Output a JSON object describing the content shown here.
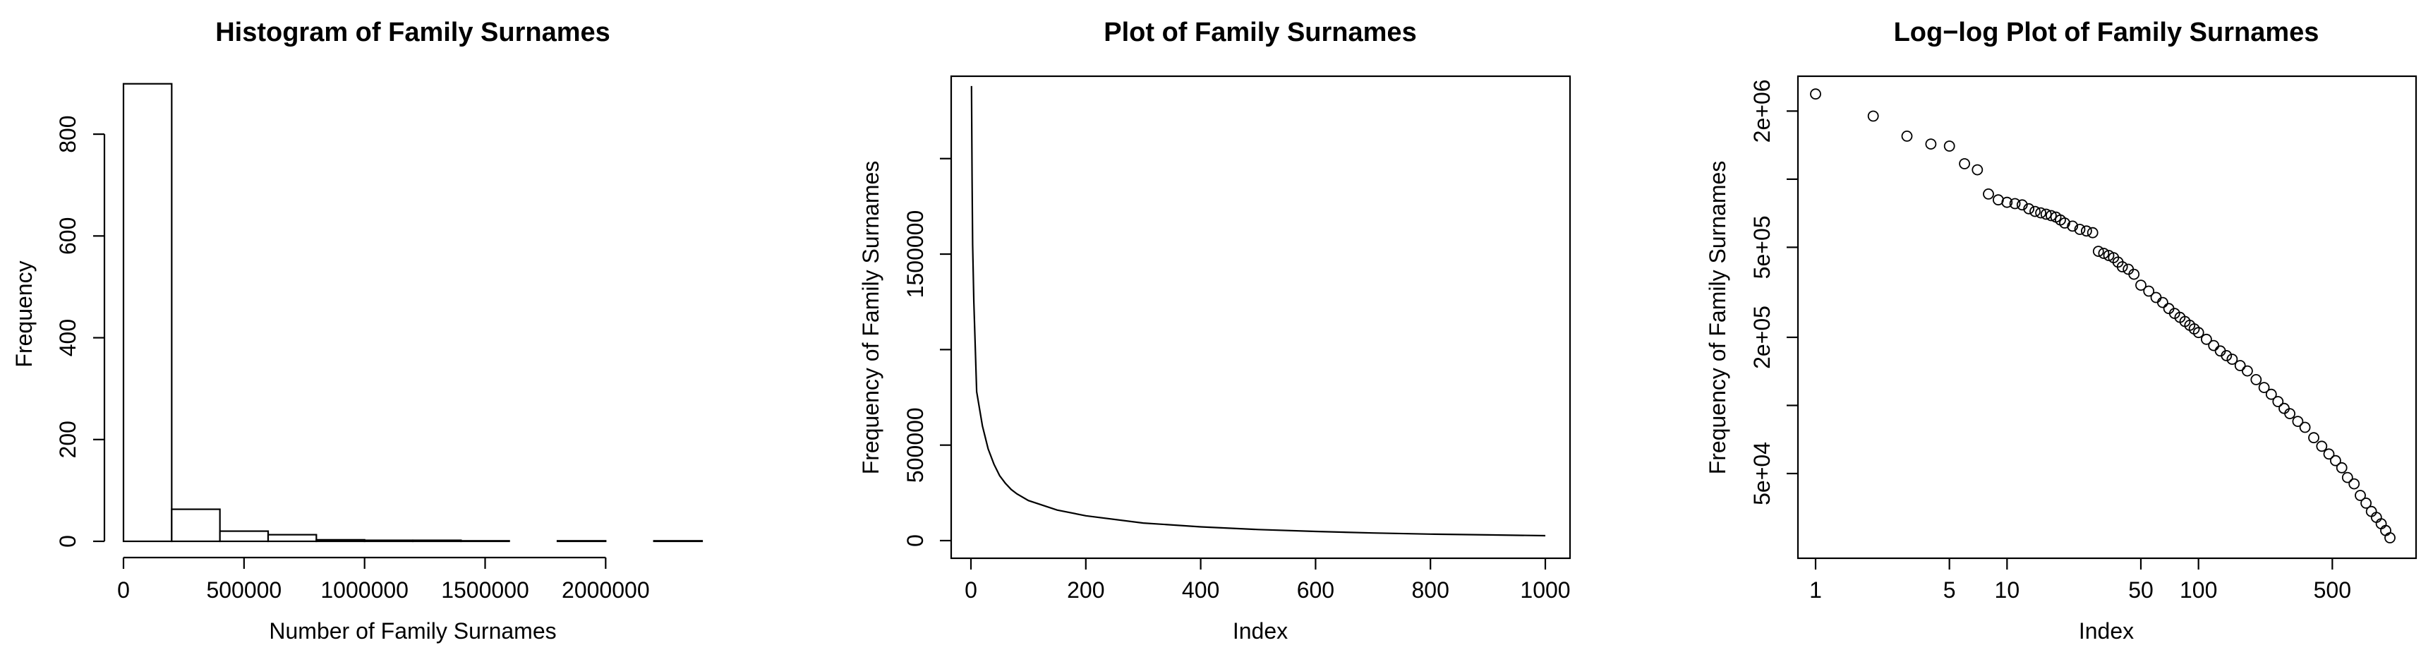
{
  "chart_data": [
    {
      "type": "bar",
      "title": "Histogram of Family Surnames",
      "xlabel": "Number of Family Surnames",
      "ylabel": "Frequency",
      "xlim": [
        0,
        2400000
      ],
      "ylim": [
        0,
        900
      ],
      "x_ticks": [
        {
          "value": 0,
          "label": "0"
        },
        {
          "value": 500000,
          "label": "500000"
        },
        {
          "value": 1000000,
          "label": "1000000"
        },
        {
          "value": 1500000,
          "label": "1500000"
        },
        {
          "value": 2000000,
          "label": "2000000"
        }
      ],
      "y_ticks": [
        {
          "value": 0,
          "label": "0"
        },
        {
          "value": 200,
          "label": "200"
        },
        {
          "value": 400,
          "label": "400"
        },
        {
          "value": 600,
          "label": "600"
        },
        {
          "value": 800,
          "label": "800"
        }
      ],
      "bin_edges": [
        0,
        200000,
        400000,
        600000,
        800000,
        1000000,
        1200000,
        1400000,
        1600000,
        1800000,
        2000000,
        2200000,
        2400000
      ],
      "counts": [
        899,
        63,
        20,
        13,
        3,
        2,
        2,
        1,
        0,
        1,
        0,
        1
      ],
      "grid": false
    },
    {
      "type": "line",
      "title": "Plot of Family Surnames",
      "xlabel": "Index",
      "ylabel": "Frequency of Family Surnames",
      "xlim": [
        0,
        1000
      ],
      "ylim": [
        0,
        2350000
      ],
      "x_ticks": [
        {
          "value": 0,
          "label": "0"
        },
        {
          "value": 200,
          "label": "200"
        },
        {
          "value": 400,
          "label": "400"
        },
        {
          "value": 600,
          "label": "600"
        },
        {
          "value": 800,
          "label": "800"
        },
        {
          "value": 1000,
          "label": "1000"
        }
      ],
      "y_ticks": [
        {
          "value": 0,
          "label": "0"
        },
        {
          "value": 500000,
          "label": "500000"
        },
        {
          "value": 1000000,
          "label": ""
        },
        {
          "value": 1500000,
          "label": "1500000"
        },
        {
          "value": 2000000,
          "label": ""
        }
      ],
      "x": [
        1,
        2,
        3,
        5,
        10,
        15,
        20,
        30,
        40,
        50,
        60,
        70,
        80,
        100,
        150,
        200,
        300,
        400,
        500,
        600,
        700,
        800,
        900,
        1000
      ],
      "y": [
        2380000,
        1900000,
        1550000,
        1250000,
        780000,
        690000,
        600000,
        480000,
        400000,
        340000,
        300000,
        268000,
        245000,
        210000,
        160000,
        130000,
        92000,
        72000,
        58000,
        48000,
        40000,
        34000,
        30000,
        26000
      ],
      "grid": false
    },
    {
      "type": "scatter",
      "title": "Log−log Plot of Family Surnames",
      "xlabel": "Index",
      "ylabel": "Frequency of Family Surnames",
      "log_x": true,
      "log_y": true,
      "xlim": [
        1,
        1000
      ],
      "ylim": [
        26000,
        2400000
      ],
      "x_ticks": [
        {
          "value": 1,
          "label": "1"
        },
        {
          "value": 5,
          "label": "5"
        },
        {
          "value": 10,
          "label": "10"
        },
        {
          "value": 50,
          "label": "50"
        },
        {
          "value": 100,
          "label": "100"
        },
        {
          "value": 500,
          "label": "500"
        }
      ],
      "y_ticks": [
        {
          "value": 50000,
          "label": "5e+04"
        },
        {
          "value": 100000,
          "label": ""
        },
        {
          "value": 200000,
          "label": "2e+05"
        },
        {
          "value": 500000,
          "label": "5e+05"
        },
        {
          "value": 1000000,
          "label": ""
        },
        {
          "value": 2000000,
          "label": "2e+06"
        }
      ],
      "points": [
        [
          1,
          2380000
        ],
        [
          2,
          1900000
        ],
        [
          3,
          1550000
        ],
        [
          4,
          1430000
        ],
        [
          5,
          1400000
        ],
        [
          6,
          1170000
        ],
        [
          7,
          1100000
        ],
        [
          8,
          860000
        ],
        [
          9,
          810000
        ],
        [
          10,
          790000
        ],
        [
          11,
          780000
        ],
        [
          12,
          770000
        ],
        [
          13,
          740000
        ],
        [
          14,
          720000
        ],
        [
          15,
          710000
        ],
        [
          16,
          700000
        ],
        [
          17,
          690000
        ],
        [
          18,
          680000
        ],
        [
          19,
          660000
        ],
        [
          20,
          640000
        ],
        [
          22,
          620000
        ],
        [
          24,
          600000
        ],
        [
          26,
          590000
        ],
        [
          28,
          580000
        ],
        [
          30,
          480000
        ],
        [
          32,
          470000
        ],
        [
          34,
          460000
        ],
        [
          36,
          450000
        ],
        [
          38,
          430000
        ],
        [
          40,
          410000
        ],
        [
          43,
          400000
        ],
        [
          46,
          380000
        ],
        [
          50,
          340000
        ],
        [
          55,
          320000
        ],
        [
          60,
          300000
        ],
        [
          65,
          285000
        ],
        [
          70,
          268000
        ],
        [
          75,
          255000
        ],
        [
          80,
          245000
        ],
        [
          85,
          235000
        ],
        [
          90,
          226000
        ],
        [
          95,
          218000
        ],
        [
          100,
          210000
        ],
        [
          110,
          196000
        ],
        [
          120,
          184000
        ],
        [
          130,
          174000
        ],
        [
          140,
          166000
        ],
        [
          150,
          160000
        ],
        [
          165,
          150000
        ],
        [
          180,
          142000
        ],
        [
          200,
          130000
        ],
        [
          220,
          120000
        ],
        [
          240,
          112000
        ],
        [
          260,
          104000
        ],
        [
          280,
          97000
        ],
        [
          300,
          92000
        ],
        [
          330,
          85000
        ],
        [
          360,
          80000
        ],
        [
          400,
          72000
        ],
        [
          440,
          66000
        ],
        [
          480,
          61000
        ],
        [
          520,
          57000
        ],
        [
          560,
          53000
        ],
        [
          600,
          48000
        ],
        [
          650,
          45000
        ],
        [
          700,
          40000
        ],
        [
          750,
          37000
        ],
        [
          800,
          34000
        ],
        [
          850,
          32000
        ],
        [
          900,
          30000
        ],
        [
          950,
          28000
        ],
        [
          1000,
          26000
        ]
      ],
      "grid": false
    }
  ]
}
